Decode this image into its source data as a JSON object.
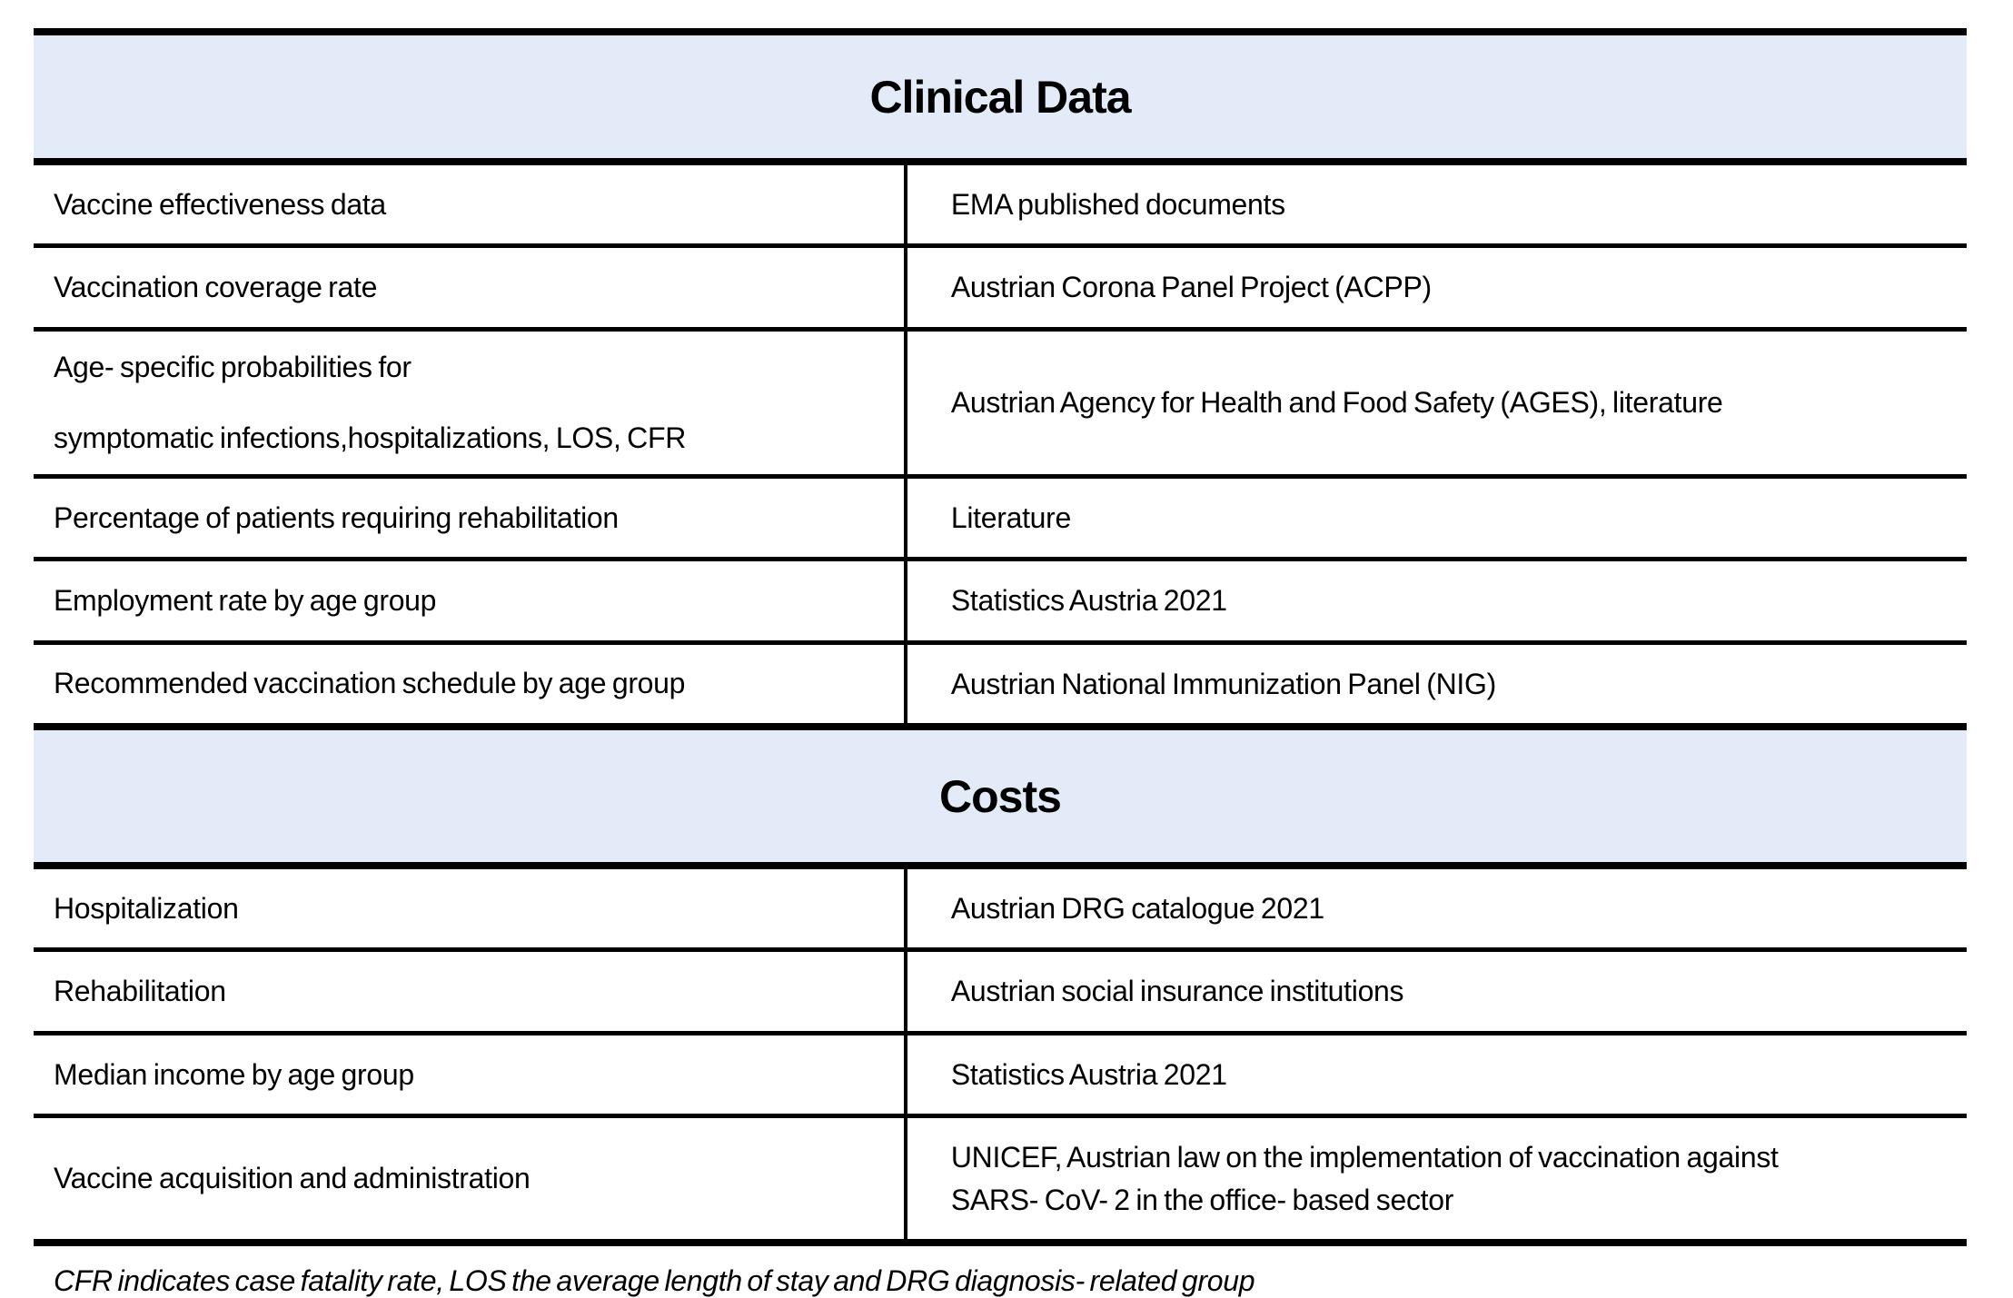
{
  "colors": {
    "header_band_bg": "#e2ebf7",
    "border": "#000000",
    "text": "#000000"
  },
  "table": {
    "sections": [
      {
        "title": "Clinical Data",
        "rows": [
          {
            "param": "Vaccine effectiveness data",
            "source": "EMA published documents"
          },
          {
            "param": "Vaccination coverage rate",
            "source": "Austrian Corona Panel Project (ACPP)"
          },
          {
            "param": "Age- specific probabilities for\n\nsymptomatic infections,hospitalizations, LOS, CFR",
            "source": "Austrian Agency for Health and Food Safety (AGES), literature"
          },
          {
            "param": "Percentage of patients requiring rehabilitation",
            "source": "Literature"
          },
          {
            "param": "Employment rate by age group",
            "source": "Statistics Austria 2021"
          },
          {
            "param": "Recommended vaccination schedule by age group",
            "source": "Austrian National Immunization Panel (NIG)"
          }
        ]
      },
      {
        "title": "Costs",
        "rows": [
          {
            "param": "Hospitalization",
            "source": "Austrian DRG catalogue 2021"
          },
          {
            "param": "Rehabilitation",
            "source": "Austrian social insurance institutions"
          },
          {
            "param": "Median income by age group",
            "source": "Statistics Austria 2021"
          },
          {
            "param": "Vaccine acquisition and administration",
            "source": "UNICEF, Austrian law on the implementation of vaccination against\nSARS- CoV- 2 in the office- based sector"
          }
        ]
      }
    ],
    "footnote": "CFR indicates case fatality rate, LOS the average length of stay and DRG diagnosis- related group"
  }
}
